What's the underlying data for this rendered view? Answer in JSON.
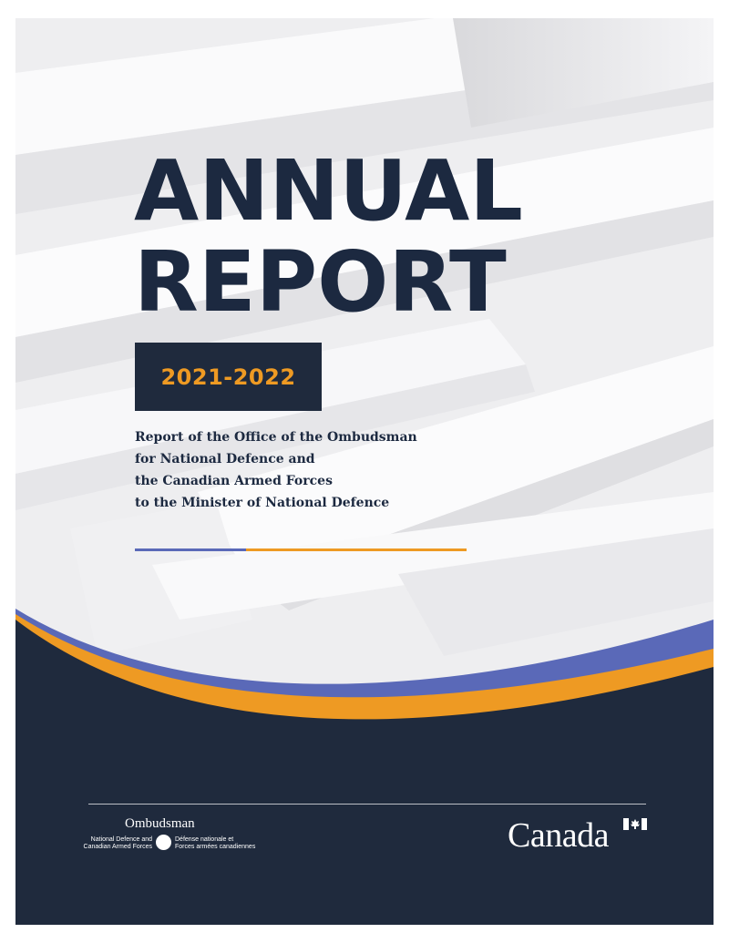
{
  "cover": {
    "title_line1": "ANNUAL",
    "title_line2": "REPORT",
    "year": "2021-2022",
    "subtitle_lines": [
      "Report of the Office of the Ombudsman",
      "for National Defence and",
      "the Canadian Armed Forces",
      "to the Minister of National Defence"
    ]
  },
  "footer": {
    "ombudsman_word": "Ombudsman",
    "ombudsman_en_line1": "National Defence and",
    "ombudsman_en_line2": "Canadian Armed Forces",
    "ombudsman_fr_line1": "Défense nationale et",
    "ombudsman_fr_line2": "Forces armées canadiennes",
    "wordmark": "Canada"
  },
  "colors": {
    "navy": "#1f2a3d",
    "title_navy": "#1c2940",
    "orange": "#ee9a23",
    "blue": "#5a69b8"
  }
}
